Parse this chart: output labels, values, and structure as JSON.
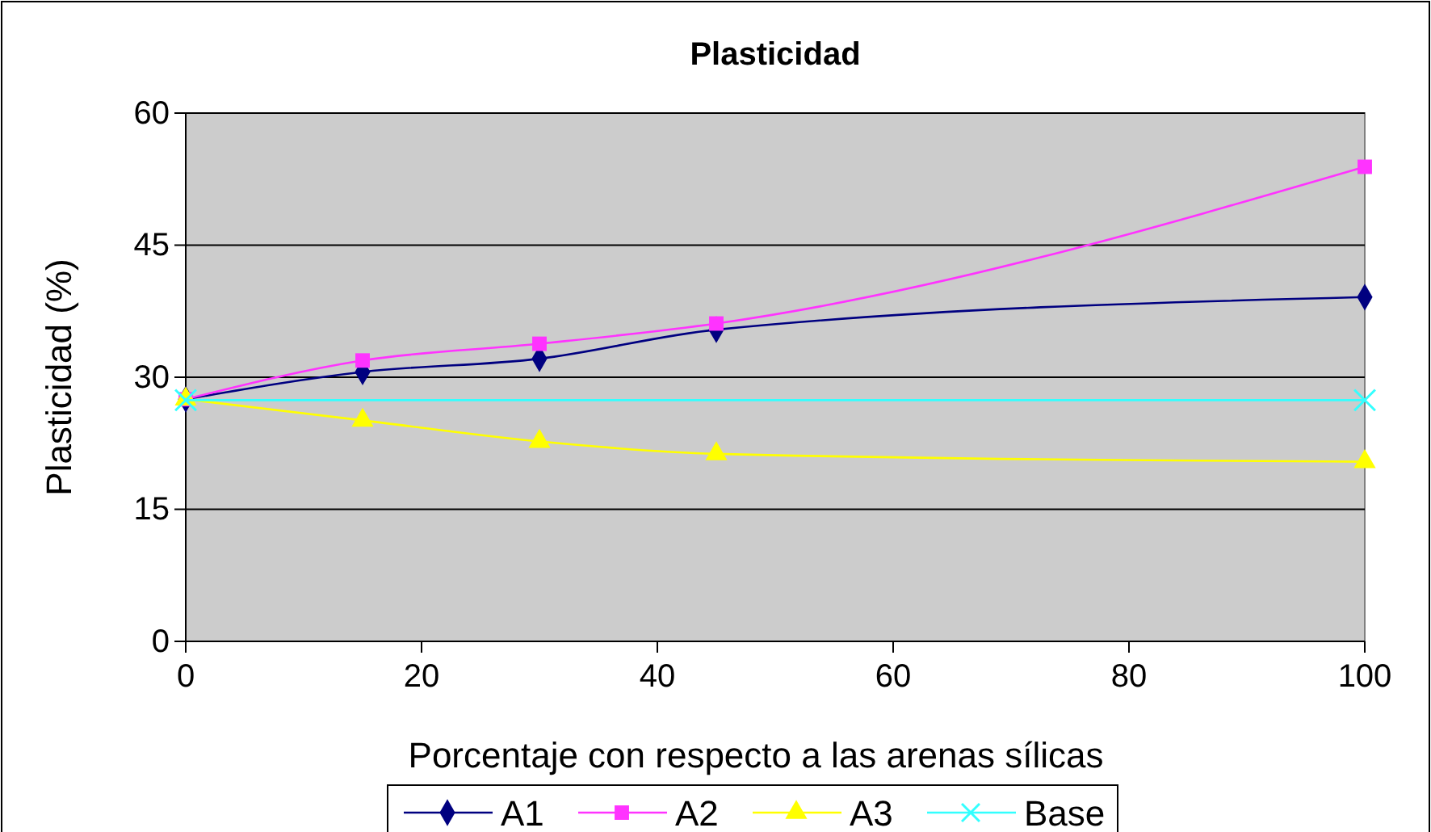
{
  "chart_data": {
    "type": "line",
    "title": "Plasticidad",
    "xlabel": "Porcentaje con respecto a las arenas sílicas",
    "ylabel": "Plasticidad  (%)",
    "xlim": [
      0,
      100
    ],
    "xticks": [
      0,
      20,
      40,
      60,
      80,
      100
    ],
    "ylim": [
      0,
      60
    ],
    "yticks": [
      0,
      15,
      30,
      45,
      60
    ],
    "grid": "y",
    "legend": "bottom",
    "series": [
      {
        "name": "A1",
        "color": "#000080",
        "marker": "diamond",
        "x": [
          0,
          15,
          30,
          45,
          100
        ],
        "values": [
          27.5,
          30.6,
          32.1,
          35.4,
          39.1
        ]
      },
      {
        "name": "A2",
        "color": "#ff33ff",
        "marker": "square",
        "x": [
          0,
          15,
          30,
          45,
          100
        ],
        "values": [
          27.5,
          31.9,
          33.8,
          36.1,
          53.9
        ]
      },
      {
        "name": "A3",
        "color": "#ffff00",
        "marker": "triangle",
        "x": [
          0,
          15,
          30,
          45,
          100
        ],
        "values": [
          27.5,
          25.1,
          22.7,
          21.3,
          20.4
        ]
      },
      {
        "name": "Base",
        "color": "#33ffff",
        "marker": "cross",
        "x": [
          0,
          100
        ],
        "values": [
          27.4,
          27.4
        ]
      }
    ]
  }
}
